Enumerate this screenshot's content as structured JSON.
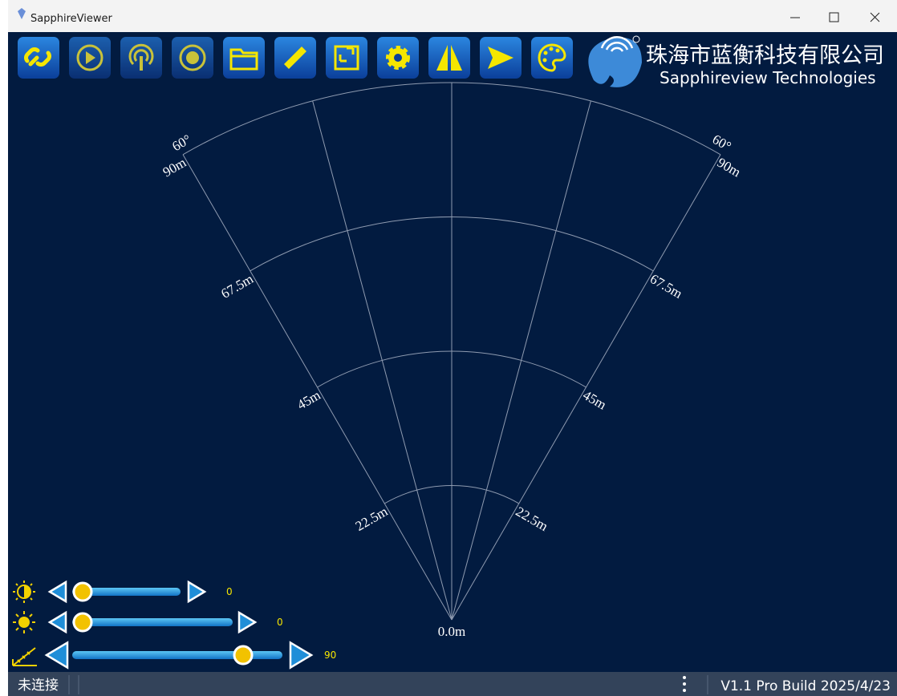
{
  "window": {
    "title": "SapphireViewer"
  },
  "logo": {
    "company_cn": "珠海市蓝衡科技有限公司",
    "company_en": "Sapphireview Technologies"
  },
  "sonar": {
    "range_labels": [
      "22.5m",
      "45m",
      "67.5m",
      "90m"
    ],
    "angle_label": "60°",
    "origin_label": "0.0m"
  },
  "sliders": [
    {
      "value": 0
    },
    {
      "value": 0
    },
    {
      "value": 90
    }
  ],
  "status": {
    "connection": "未连接",
    "version": "V1.1 Pro Build 2025/4/23"
  }
}
